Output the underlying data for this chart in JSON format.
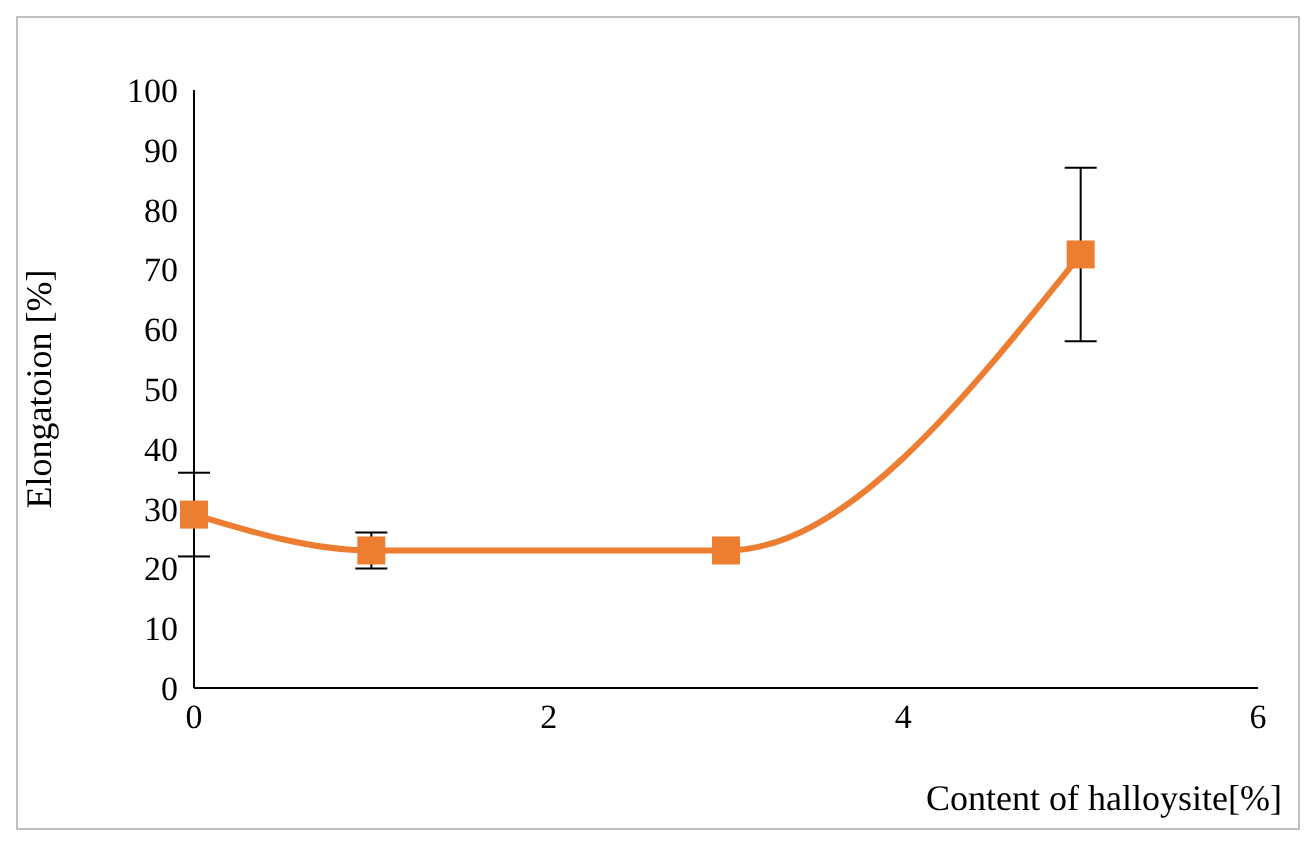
{
  "chart_data": {
    "type": "line",
    "xlabel": "Content of halloysite[%]",
    "ylabel": "Elongatoion [%]",
    "x": [
      0,
      1,
      3,
      5
    ],
    "series": [
      {
        "color": "#ed7d31",
        "values": [
          29,
          23,
          23,
          72.5
        ],
        "errors": [
          7,
          3,
          null,
          [
            58,
            87
          ]
        ]
      }
    ],
    "xlim": [
      0,
      6
    ],
    "xticks": [
      0,
      2,
      4,
      6
    ],
    "ylim": [
      0,
      100
    ],
    "yticks": [
      0,
      10,
      20,
      30,
      40,
      50,
      60,
      70,
      80,
      90,
      100
    ],
    "marker": "square",
    "line_style": "solid"
  }
}
